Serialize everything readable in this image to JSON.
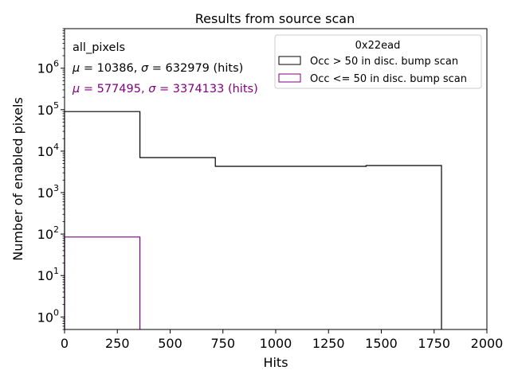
{
  "chart_data": {
    "type": "histogram",
    "title": "Results from source scan",
    "xlabel": "Hits",
    "ylabel": "Number of enabled pixels",
    "xlim": [
      0,
      2000
    ],
    "ylim": [
      0.5,
      9000000
    ],
    "yscale": "log",
    "grid": false,
    "x_ticks": [
      0,
      250,
      500,
      750,
      1000,
      1250,
      1500,
      1750,
      2000
    ],
    "x_tick_labels": [
      "0",
      "250",
      "500",
      "750",
      "1000",
      "1250",
      "1500",
      "1750",
      "2000"
    ],
    "y_ticks": [
      1,
      10,
      100,
      1000,
      10000,
      100000,
      1000000
    ],
    "y_tick_exponents": [
      "0",
      "1",
      "2",
      "3",
      "4",
      "5",
      "6"
    ],
    "annotations": {
      "label": "all_pixels",
      "stats1": {
        "mu": "10386",
        "sigma": "632979",
        "unit": "(hits)",
        "color": "#000000"
      },
      "stats2": {
        "mu": "577495",
        "sigma": "3374133",
        "unit": "(hits)",
        "color": "#800080"
      }
    },
    "legend": {
      "title": "0x22ead",
      "position": "top-right",
      "entries": [
        {
          "label": "Occ > 50 in disc. bump scan",
          "color": "#000000"
        },
        {
          "label": "Occ <= 50 in disc. bump scan",
          "color": "#800080"
        }
      ]
    },
    "series": [
      {
        "name": "Occ > 50 in disc. bump scan",
        "color": "#000000",
        "bin_edges": [
          0,
          357,
          714,
          1071,
          1428,
          1785
        ],
        "values": [
          90000,
          7000,
          4300,
          4300,
          4500
        ]
      },
      {
        "name": "Occ <= 50 in disc. bump scan",
        "color": "#800080",
        "bin_edges": [
          0,
          357
        ],
        "values": [
          85
        ]
      }
    ]
  }
}
